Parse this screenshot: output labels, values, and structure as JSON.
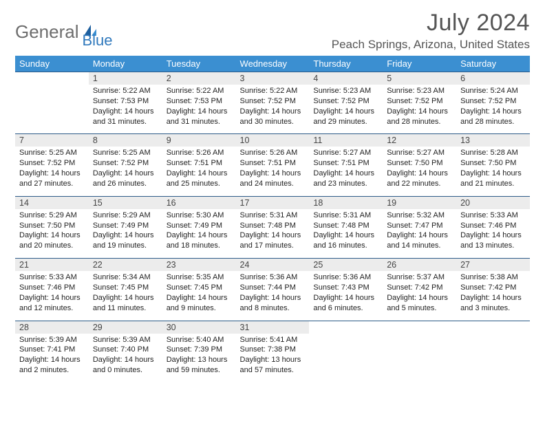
{
  "brand": {
    "part1": "General",
    "part2": "Blue"
  },
  "title": "July 2024",
  "location": "Peach Springs, Arizona, United States",
  "colors": {
    "header_bg": "#3b8fd1",
    "header_text": "#ffffff",
    "daynum_bg": "#ececec",
    "row_border": "#2b5a87",
    "brand_gray": "#6d6d6d",
    "brand_blue": "#2f78bc"
  },
  "days_of_week": [
    "Sunday",
    "Monday",
    "Tuesday",
    "Wednesday",
    "Thursday",
    "Friday",
    "Saturday"
  ],
  "start_weekday": 1,
  "days": [
    {
      "n": 1,
      "sunrise": "5:22 AM",
      "sunset": "7:53 PM",
      "daylight": "14 hours and 31 minutes."
    },
    {
      "n": 2,
      "sunrise": "5:22 AM",
      "sunset": "7:53 PM",
      "daylight": "14 hours and 31 minutes."
    },
    {
      "n": 3,
      "sunrise": "5:22 AM",
      "sunset": "7:52 PM",
      "daylight": "14 hours and 30 minutes."
    },
    {
      "n": 4,
      "sunrise": "5:23 AM",
      "sunset": "7:52 PM",
      "daylight": "14 hours and 29 minutes."
    },
    {
      "n": 5,
      "sunrise": "5:23 AM",
      "sunset": "7:52 PM",
      "daylight": "14 hours and 28 minutes."
    },
    {
      "n": 6,
      "sunrise": "5:24 AM",
      "sunset": "7:52 PM",
      "daylight": "14 hours and 28 minutes."
    },
    {
      "n": 7,
      "sunrise": "5:25 AM",
      "sunset": "7:52 PM",
      "daylight": "14 hours and 27 minutes."
    },
    {
      "n": 8,
      "sunrise": "5:25 AM",
      "sunset": "7:52 PM",
      "daylight": "14 hours and 26 minutes."
    },
    {
      "n": 9,
      "sunrise": "5:26 AM",
      "sunset": "7:51 PM",
      "daylight": "14 hours and 25 minutes."
    },
    {
      "n": 10,
      "sunrise": "5:26 AM",
      "sunset": "7:51 PM",
      "daylight": "14 hours and 24 minutes."
    },
    {
      "n": 11,
      "sunrise": "5:27 AM",
      "sunset": "7:51 PM",
      "daylight": "14 hours and 23 minutes."
    },
    {
      "n": 12,
      "sunrise": "5:27 AM",
      "sunset": "7:50 PM",
      "daylight": "14 hours and 22 minutes."
    },
    {
      "n": 13,
      "sunrise": "5:28 AM",
      "sunset": "7:50 PM",
      "daylight": "14 hours and 21 minutes."
    },
    {
      "n": 14,
      "sunrise": "5:29 AM",
      "sunset": "7:50 PM",
      "daylight": "14 hours and 20 minutes."
    },
    {
      "n": 15,
      "sunrise": "5:29 AM",
      "sunset": "7:49 PM",
      "daylight": "14 hours and 19 minutes."
    },
    {
      "n": 16,
      "sunrise": "5:30 AM",
      "sunset": "7:49 PM",
      "daylight": "14 hours and 18 minutes."
    },
    {
      "n": 17,
      "sunrise": "5:31 AM",
      "sunset": "7:48 PM",
      "daylight": "14 hours and 17 minutes."
    },
    {
      "n": 18,
      "sunrise": "5:31 AM",
      "sunset": "7:48 PM",
      "daylight": "14 hours and 16 minutes."
    },
    {
      "n": 19,
      "sunrise": "5:32 AM",
      "sunset": "7:47 PM",
      "daylight": "14 hours and 14 minutes."
    },
    {
      "n": 20,
      "sunrise": "5:33 AM",
      "sunset": "7:46 PM",
      "daylight": "14 hours and 13 minutes."
    },
    {
      "n": 21,
      "sunrise": "5:33 AM",
      "sunset": "7:46 PM",
      "daylight": "14 hours and 12 minutes."
    },
    {
      "n": 22,
      "sunrise": "5:34 AM",
      "sunset": "7:45 PM",
      "daylight": "14 hours and 11 minutes."
    },
    {
      "n": 23,
      "sunrise": "5:35 AM",
      "sunset": "7:45 PM",
      "daylight": "14 hours and 9 minutes."
    },
    {
      "n": 24,
      "sunrise": "5:36 AM",
      "sunset": "7:44 PM",
      "daylight": "14 hours and 8 minutes."
    },
    {
      "n": 25,
      "sunrise": "5:36 AM",
      "sunset": "7:43 PM",
      "daylight": "14 hours and 6 minutes."
    },
    {
      "n": 26,
      "sunrise": "5:37 AM",
      "sunset": "7:42 PM",
      "daylight": "14 hours and 5 minutes."
    },
    {
      "n": 27,
      "sunrise": "5:38 AM",
      "sunset": "7:42 PM",
      "daylight": "14 hours and 3 minutes."
    },
    {
      "n": 28,
      "sunrise": "5:39 AM",
      "sunset": "7:41 PM",
      "daylight": "14 hours and 2 minutes."
    },
    {
      "n": 29,
      "sunrise": "5:39 AM",
      "sunset": "7:40 PM",
      "daylight": "14 hours and 0 minutes."
    },
    {
      "n": 30,
      "sunrise": "5:40 AM",
      "sunset": "7:39 PM",
      "daylight": "13 hours and 59 minutes."
    },
    {
      "n": 31,
      "sunrise": "5:41 AM",
      "sunset": "7:38 PM",
      "daylight": "13 hours and 57 minutes."
    }
  ],
  "labels": {
    "sunrise_prefix": "Sunrise: ",
    "sunset_prefix": "Sunset: ",
    "daylight_prefix": "Daylight: "
  }
}
